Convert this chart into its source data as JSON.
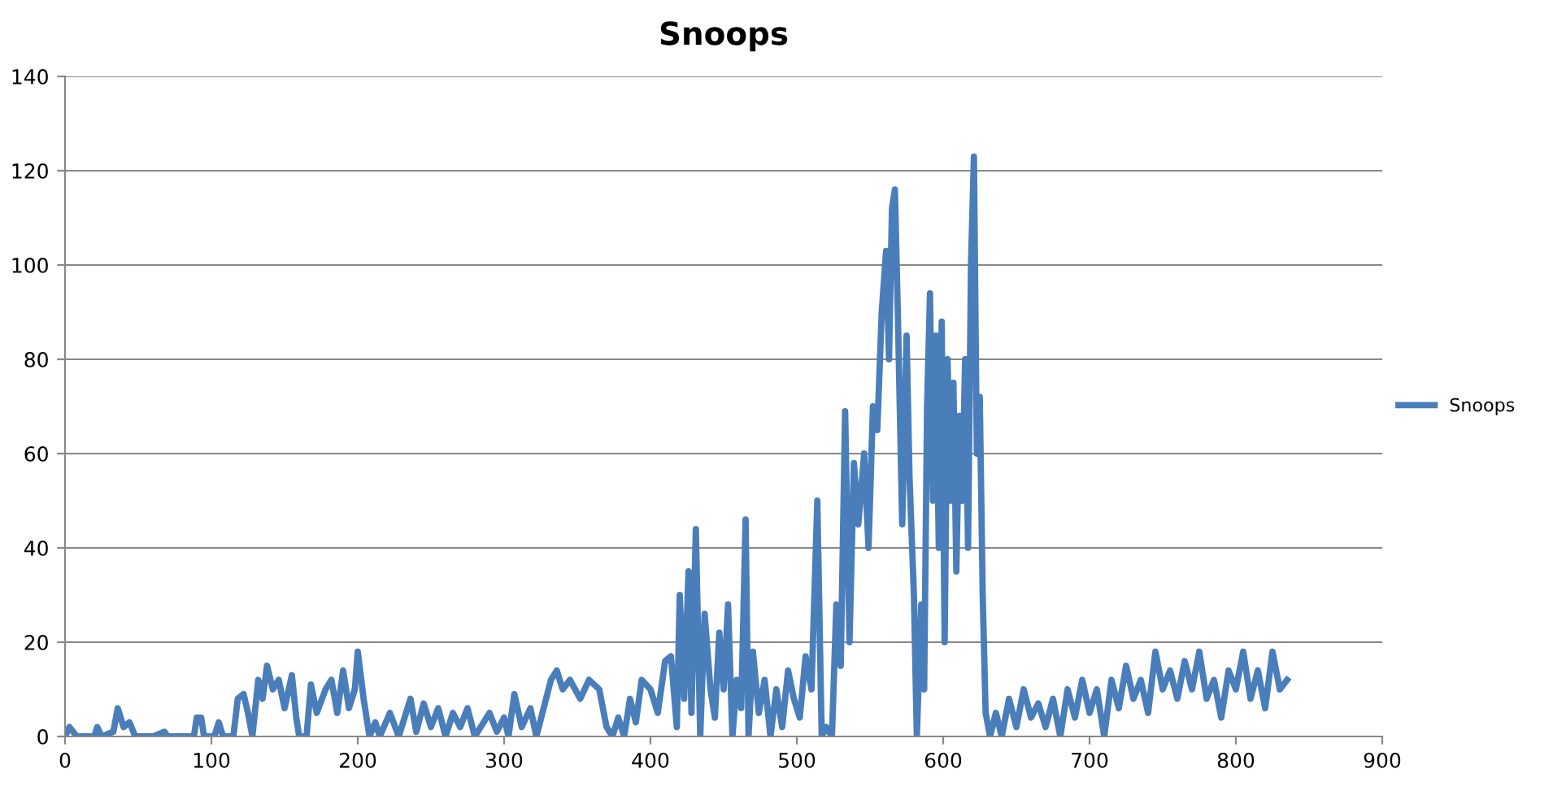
{
  "chart_data": {
    "type": "line",
    "title": "Snoops",
    "xlim": [
      0,
      900
    ],
    "xticks": [
      0,
      100,
      200,
      300,
      400,
      500,
      600,
      700,
      800,
      900
    ],
    "ylim": [
      0,
      140
    ],
    "yticks": [
      0,
      20,
      40,
      60,
      80,
      100,
      120,
      140
    ],
    "grid": "y",
    "legend": "right",
    "marker": "none",
    "line_style": "solid",
    "series": [
      {
        "name": "Snoops",
        "color": "#4a7ebb",
        "x": [
          0,
          3,
          8,
          20,
          22,
          25,
          33,
          36,
          40,
          44,
          48,
          60,
          68,
          70,
          88,
          90,
          93,
          95,
          102,
          105,
          108,
          115,
          118,
          122,
          125,
          128,
          132,
          135,
          138,
          142,
          146,
          150,
          155,
          158,
          160,
          165,
          168,
          172,
          178,
          182,
          186,
          190,
          194,
          198,
          200,
          204,
          208,
          212,
          215,
          222,
          228,
          232,
          236,
          240,
          245,
          250,
          255,
          260,
          265,
          270,
          275,
          280,
          290,
          295,
          300,
          303,
          307,
          312,
          318,
          322,
          327,
          332,
          336,
          340,
          345,
          352,
          358,
          365,
          370,
          374,
          378,
          382,
          386,
          390,
          394,
          400,
          405,
          410,
          414,
          418,
          420,
          423,
          426,
          428,
          431,
          434,
          437,
          441,
          444,
          447,
          450,
          453,
          456,
          459,
          462,
          465,
          467,
          470,
          474,
          478,
          482,
          486,
          490,
          494,
          498,
          502,
          506,
          510,
          514,
          517,
          520,
          524,
          527,
          530,
          533,
          536,
          539,
          542,
          546,
          549,
          552,
          555,
          558,
          561,
          563,
          565,
          567,
          569,
          572,
          575,
          577,
          580,
          582,
          585,
          587,
          589,
          591,
          593,
          595,
          597,
          599,
          601,
          603,
          605,
          607,
          609,
          611,
          613,
          615,
          617,
          619,
          621,
          623,
          625,
          627,
          629,
          632,
          636,
          640,
          645,
          650,
          655,
          660,
          665,
          670,
          675,
          680,
          685,
          690,
          695,
          700,
          705,
          710,
          715,
          720,
          725,
          730,
          735,
          740,
          745,
          750,
          755,
          760,
          765,
          770,
          775,
          780,
          785,
          790,
          795,
          800,
          805,
          810,
          815,
          820,
          825,
          830,
          835
        ],
        "values": [
          0,
          2,
          0,
          0,
          2,
          0,
          1,
          6,
          2,
          3,
          0,
          0,
          1,
          0,
          0,
          4,
          4,
          0,
          0,
          3,
          0,
          0,
          8,
          9,
          5,
          0,
          12,
          8,
          15,
          10,
          12,
          6,
          13,
          4,
          0,
          0,
          11,
          5,
          10,
          12,
          5,
          14,
          6,
          10,
          18,
          8,
          0,
          3,
          0,
          5,
          0,
          4,
          8,
          1,
          7,
          2,
          6,
          0,
          5,
          2,
          6,
          0,
          5,
          1,
          4,
          0,
          9,
          2,
          6,
          0,
          6,
          12,
          14,
          10,
          12,
          8,
          12,
          10,
          2,
          0,
          4,
          0,
          8,
          3,
          12,
          10,
          5,
          16,
          17,
          2,
          30,
          8,
          35,
          5,
          44,
          0,
          26,
          10,
          4,
          22,
          10,
          28,
          0,
          12,
          6,
          46,
          0,
          18,
          5,
          12,
          0,
          10,
          2,
          14,
          8,
          4,
          17,
          10,
          50,
          0,
          2,
          0,
          28,
          15,
          69,
          20,
          58,
          45,
          60,
          40,
          70,
          65,
          90,
          103,
          80,
          112,
          116,
          90,
          45,
          85,
          55,
          30,
          0,
          28,
          10,
          70,
          94,
          50,
          85,
          40,
          88,
          20,
          80,
          50,
          75,
          35,
          68,
          50,
          80,
          40,
          100,
          123,
          60,
          72,
          30,
          5,
          0,
          5,
          0,
          8,
          2,
          10,
          4,
          7,
          2,
          8,
          0,
          10,
          4,
          12,
          5,
          10,
          0,
          12,
          6,
          15,
          8,
          12,
          5,
          18,
          10,
          14,
          8,
          16,
          10,
          18,
          8,
          12,
          4,
          14,
          10,
          18,
          8,
          14,
          6,
          18,
          10,
          12
        ]
      }
    ]
  }
}
